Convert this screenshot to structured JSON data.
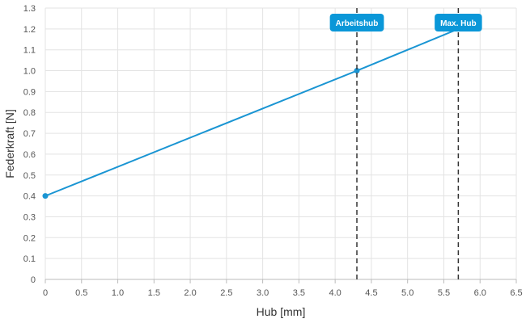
{
  "chart_data": {
    "type": "line",
    "xlabel": "Hub [mm]",
    "ylabel": "Federkraft [N]",
    "xlim": [
      0,
      6.5
    ],
    "ylim": [
      0,
      1.3
    ],
    "xticks": [
      "0",
      "0.5",
      "1.0",
      "1.5",
      "2.0",
      "2.5",
      "3.0",
      "3.5",
      "4.0",
      "4.5",
      "5.0",
      "5.5",
      "6.0",
      "6.5"
    ],
    "yticks": [
      "0",
      "0.1",
      "0.2",
      "0.3",
      "0.4",
      "0.5",
      "0.6",
      "0.7",
      "0.8",
      "0.9",
      "1.0",
      "1.1",
      "1.2",
      "1.3"
    ],
    "grid": true,
    "series": [
      {
        "x": [
          0,
          4.3,
          5.7
        ],
        "y": [
          0.4,
          1.0,
          1.2
        ],
        "color": "#1a95d3",
        "markers": [
          0,
          1
        ]
      }
    ],
    "reference_lines": [
      {
        "label": "Arbeitshub",
        "x": 4.3
      },
      {
        "label": "Max. Hub",
        "x": 5.7
      }
    ],
    "colors": {
      "line": "#1a95d3",
      "label_bg": "#0a97d8",
      "reference_line": "#333333",
      "grid": "#e3e3e3"
    }
  }
}
